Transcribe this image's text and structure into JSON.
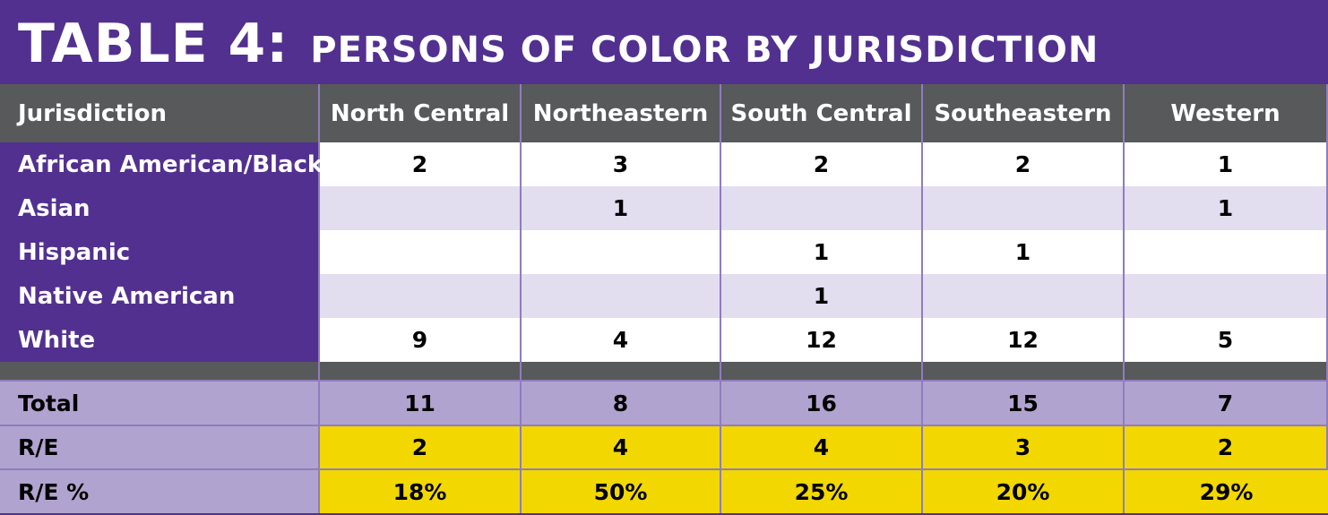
{
  "title": {
    "main": "TABLE 4:",
    "sub": "PERSONS OF COLOR BY JURISDICTION"
  },
  "chart_data": {
    "type": "table",
    "columns": [
      "Jurisdiction",
      "North Central",
      "Northeastern",
      "South Central",
      "Southeastern",
      "Western"
    ],
    "rows": [
      {
        "label": "African American/Black",
        "values": [
          "2",
          "3",
          "2",
          "2",
          "1"
        ]
      },
      {
        "label": "Asian",
        "values": [
          "",
          "1",
          "",
          "",
          "1"
        ]
      },
      {
        "label": "Hispanic",
        "values": [
          "",
          "",
          "1",
          "1",
          ""
        ]
      },
      {
        "label": "Native American",
        "values": [
          "",
          "",
          "1",
          "",
          ""
        ]
      },
      {
        "label": "White",
        "values": [
          "9",
          "4",
          "12",
          "12",
          "5"
        ]
      }
    ],
    "summary_rows": [
      {
        "label": "Total",
        "values": [
          "11",
          "8",
          "16",
          "15",
          "7"
        ]
      },
      {
        "label": "R/E",
        "values": [
          "2",
          "4",
          "4",
          "3",
          "2"
        ]
      },
      {
        "label": "R/E %",
        "values": [
          "18%",
          "50%",
          "25%",
          "20%",
          "29%"
        ]
      }
    ]
  },
  "colors": {
    "title_bg": "#52308f",
    "header_bg": "#58595b",
    "summary_bg": "#b1a3cf",
    "highlight_bg": "#f2d700",
    "alt_row_bg": "#e2ddef"
  }
}
